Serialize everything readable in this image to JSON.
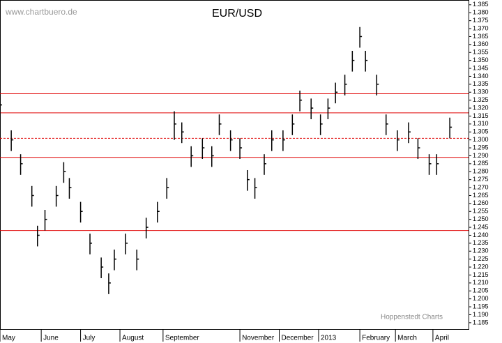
{
  "chart_data": {
    "type": "ohlc",
    "title": "EUR/USD",
    "source": "www.chartbuero.de",
    "credit": "Hoppenstedt Charts",
    "x": [
      0,
      6,
      11,
      17,
      20,
      24,
      30,
      34,
      37,
      43,
      48,
      54,
      58,
      61,
      67,
      73,
      78,
      84,
      89,
      93,
      97,
      102,
      108,
      113,
      117,
      123,
      128,
      132,
      136,
      141,
      145,
      151,
      156,
      160,
      166,
      171,
      175,
      179,
      184,
      188,
      192,
      195,
      201,
      206,
      212,
      218,
      223,
      229,
      233,
      240
    ],
    "series": [
      {
        "color": "#000000",
        "high": [
          1.328,
          1.306,
          1.291,
          1.271,
          1.246,
          1.256,
          1.271,
          1.286,
          1.276,
          1.261,
          1.241,
          1.226,
          1.216,
          1.231,
          1.241,
          1.231,
          1.251,
          1.261,
          1.276,
          1.318,
          1.311,
          1.296,
          1.301,
          1.296,
          1.316,
          1.306,
          1.301,
          1.281,
          1.276,
          1.291,
          1.306,
          1.306,
          1.316,
          1.331,
          1.326,
          1.316,
          1.326,
          1.336,
          1.341,
          1.356,
          1.371,
          1.356,
          1.341,
          1.316,
          1.306,
          1.311,
          1.301,
          1.291,
          1.291,
          1.314
        ],
        "low": [
          1.315,
          1.293,
          1.278,
          1.258,
          1.233,
          1.243,
          1.258,
          1.273,
          1.263,
          1.248,
          1.228,
          1.213,
          1.203,
          1.218,
          1.228,
          1.218,
          1.238,
          1.248,
          1.263,
          1.3,
          1.298,
          1.283,
          1.288,
          1.283,
          1.303,
          1.293,
          1.288,
          1.268,
          1.263,
          1.278,
          1.293,
          1.293,
          1.303,
          1.318,
          1.313,
          1.303,
          1.313,
          1.323,
          1.328,
          1.343,
          1.358,
          1.343,
          1.328,
          1.303,
          1.293,
          1.298,
          1.288,
          1.278,
          1.278,
          1.301
        ],
        "close": [
          1.322,
          1.3,
          1.285,
          1.265,
          1.24,
          1.25,
          1.265,
          1.28,
          1.27,
          1.255,
          1.235,
          1.22,
          1.21,
          1.225,
          1.235,
          1.225,
          1.245,
          1.255,
          1.27,
          1.31,
          1.305,
          1.29,
          1.295,
          1.29,
          1.31,
          1.3,
          1.295,
          1.275,
          1.27,
          1.285,
          1.3,
          1.3,
          1.31,
          1.325,
          1.32,
          1.31,
          1.32,
          1.33,
          1.335,
          1.35,
          1.365,
          1.35,
          1.335,
          1.31,
          1.3,
          1.305,
          1.295,
          1.285,
          1.285,
          1.308
        ]
      }
    ],
    "xlim": [
      0,
      250
    ],
    "xticks": [
      {
        "value": 0,
        "label": "May"
      },
      {
        "value": 22,
        "label": "June"
      },
      {
        "value": 43,
        "label": "July"
      },
      {
        "value": 64,
        "label": "August"
      },
      {
        "value": 87,
        "label": "September"
      },
      {
        "value": 128,
        "label": "November"
      },
      {
        "value": 149,
        "label": "December"
      },
      {
        "value": 170,
        "label": "2013"
      },
      {
        "value": 192,
        "label": "February"
      },
      {
        "value": 211,
        "label": "March"
      },
      {
        "value": 231,
        "label": "April"
      }
    ],
    "ylim": [
      1.181,
      1.388
    ],
    "yticks": [
      1.185,
      {
        "value": 1.19,
        "label": "1.190"
      },
      1.195,
      {
        "value": 1.2,
        "label": "1.200"
      },
      1.205,
      {
        "value": 1.21,
        "label": "1.210"
      },
      1.215,
      {
        "value": 1.22,
        "label": "1.220"
      },
      1.225,
      {
        "value": 1.23,
        "label": "1.230"
      },
      1.235,
      {
        "value": 1.24,
        "label": "1.240"
      },
      1.245,
      {
        "value": 1.25,
        "label": "1.250"
      },
      1.255,
      {
        "value": 1.26,
        "label": "1.260"
      },
      1.265,
      {
        "value": 1.27,
        "label": "1.270"
      },
      1.275,
      {
        "value": 1.28,
        "label": "1.280"
      },
      1.285,
      {
        "value": 1.29,
        "label": "1.290"
      },
      1.295,
      {
        "value": 1.3,
        "label": "1.300"
      },
      1.305,
      {
        "value": 1.31,
        "label": "1.310"
      },
      1.315,
      {
        "value": 1.32,
        "label": "1.320"
      },
      1.325,
      {
        "value": 1.33,
        "label": "1.330"
      },
      1.335,
      {
        "value": 1.34,
        "label": "1.340"
      },
      1.345,
      {
        "value": 1.35,
        "label": "1.350"
      },
      1.355,
      {
        "value": 1.36,
        "label": "1.360"
      },
      1.365,
      {
        "value": 1.37,
        "label": "1.370"
      },
      1.375,
      {
        "value": 1.38,
        "label": "1.380"
      },
      1.385
    ],
    "reference_lines": [
      {
        "value": 1.329,
        "style": "solid"
      },
      {
        "value": 1.317,
        "style": "solid"
      },
      {
        "value": 1.301,
        "style": "dashed"
      },
      {
        "value": 1.289,
        "style": "solid"
      },
      {
        "value": 1.243,
        "style": "solid"
      }
    ],
    "reference_color": "#e00000"
  }
}
